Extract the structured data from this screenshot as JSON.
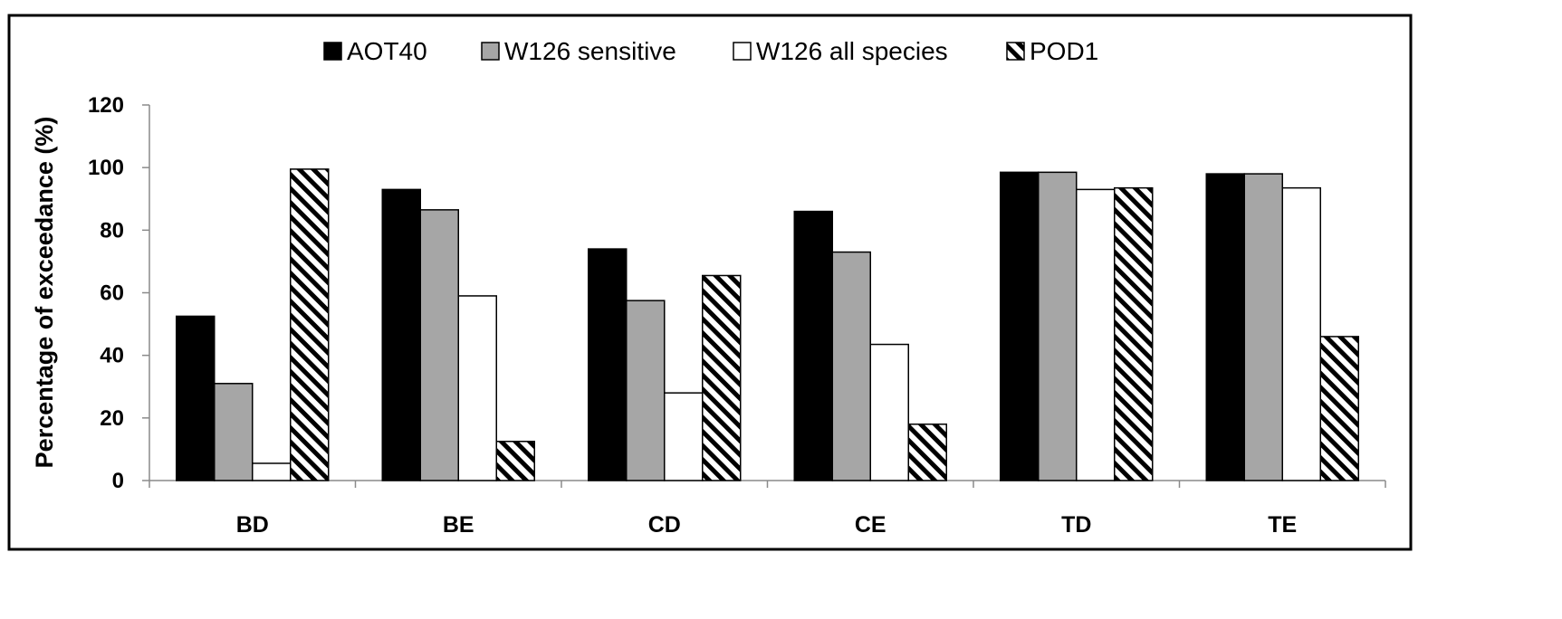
{
  "chart_data": {
    "type": "bar",
    "title": "",
    "xlabel": "",
    "ylabel": "Percentage of exceedance (%)",
    "ylim": [
      0,
      120
    ],
    "yticks": [
      0,
      20,
      40,
      60,
      80,
      100,
      120
    ],
    "grid": false,
    "legend_position": "top",
    "categories": [
      "BD",
      "BE",
      "CD",
      "CE",
      "TD",
      "TE"
    ],
    "series": [
      {
        "name": "AOT40",
        "fill": "#000000",
        "pattern": "solid",
        "values": [
          52.5,
          93,
          74,
          86,
          98.5,
          98
        ]
      },
      {
        "name": "W126 sensitive",
        "fill": "#a6a6a6",
        "pattern": "solid",
        "values": [
          31,
          86.5,
          57.5,
          73,
          98.5,
          98
        ]
      },
      {
        "name": "W126 all species",
        "fill": "#ffffff",
        "pattern": "solid",
        "values": [
          5.5,
          59,
          28,
          43.5,
          93,
          93.5
        ]
      },
      {
        "name": "POD1",
        "fill": "#ffffff",
        "pattern": "diagonal-hatch",
        "values": [
          99.5,
          12.5,
          65.5,
          18,
          93.5,
          46
        ]
      }
    ]
  }
}
